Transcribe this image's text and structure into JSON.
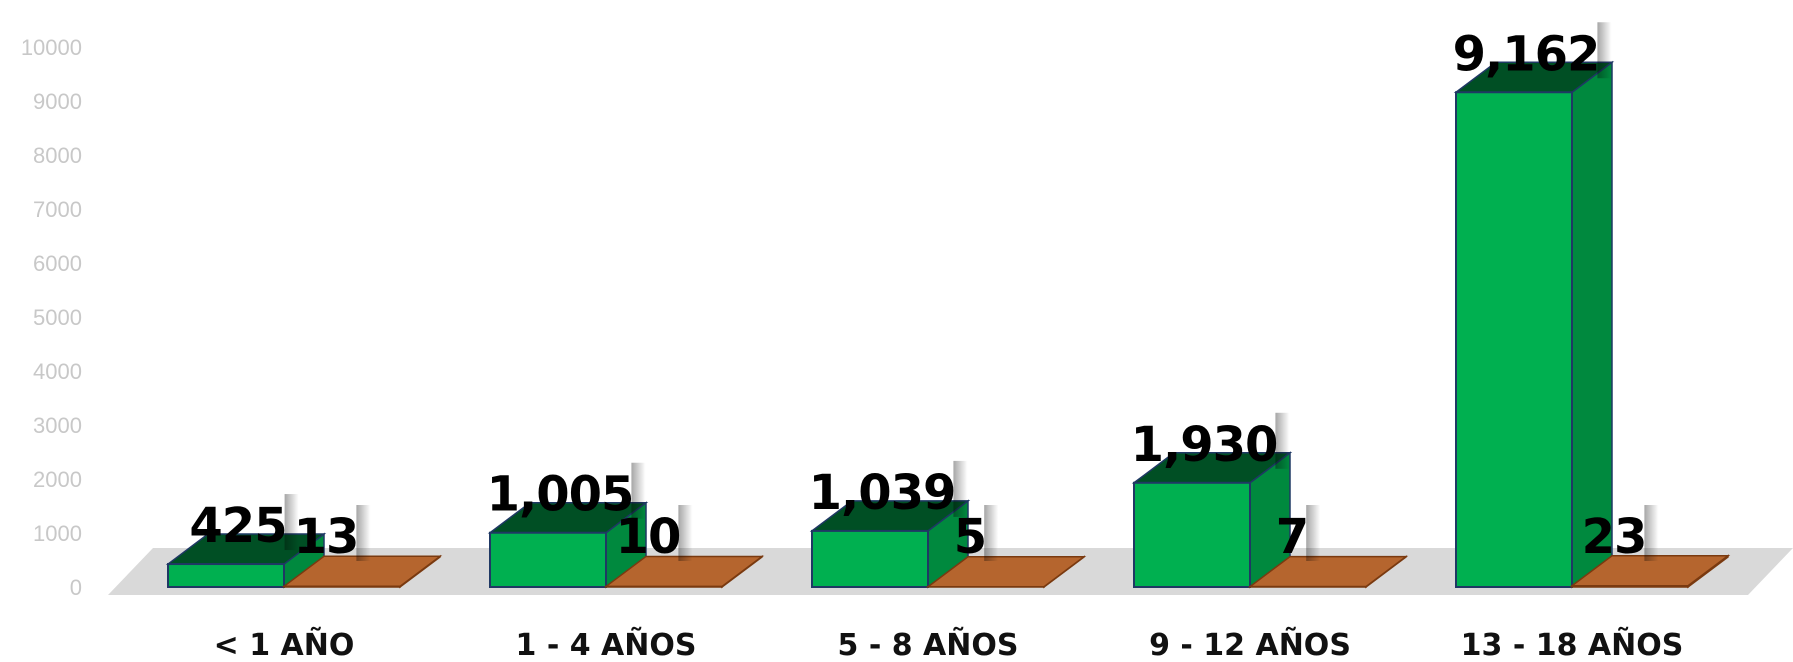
{
  "chart_data": {
    "type": "bar",
    "categories": [
      "< 1 AÑO",
      "1 - 4 AÑOS",
      "5 - 8 AÑOS",
      "9 - 12 AÑOS",
      "13 - 18 AÑOS"
    ],
    "series": [
      {
        "values": [
          425,
          1005,
          1039,
          1930,
          9162
        ],
        "value_labels": [
          "425",
          "1,005",
          "1,039",
          "1,930",
          "9,162"
        ],
        "color": "#00b050"
      },
      {
        "values": [
          13,
          10,
          5,
          7,
          23
        ],
        "value_labels": [
          "13",
          "10",
          "5",
          "7",
          "23"
        ],
        "color": "#b5652e"
      }
    ],
    "y_ticks": [
      "0",
      "1000",
      "2000",
      "3000",
      "4000",
      "5000",
      "6000",
      "7000",
      "8000",
      "9000",
      "10000"
    ],
    "ylim": [
      0,
      10000
    ],
    "grid": false,
    "legend": "none",
    "title": "",
    "xlabel": "",
    "ylabel": "",
    "style": "3d-column"
  }
}
